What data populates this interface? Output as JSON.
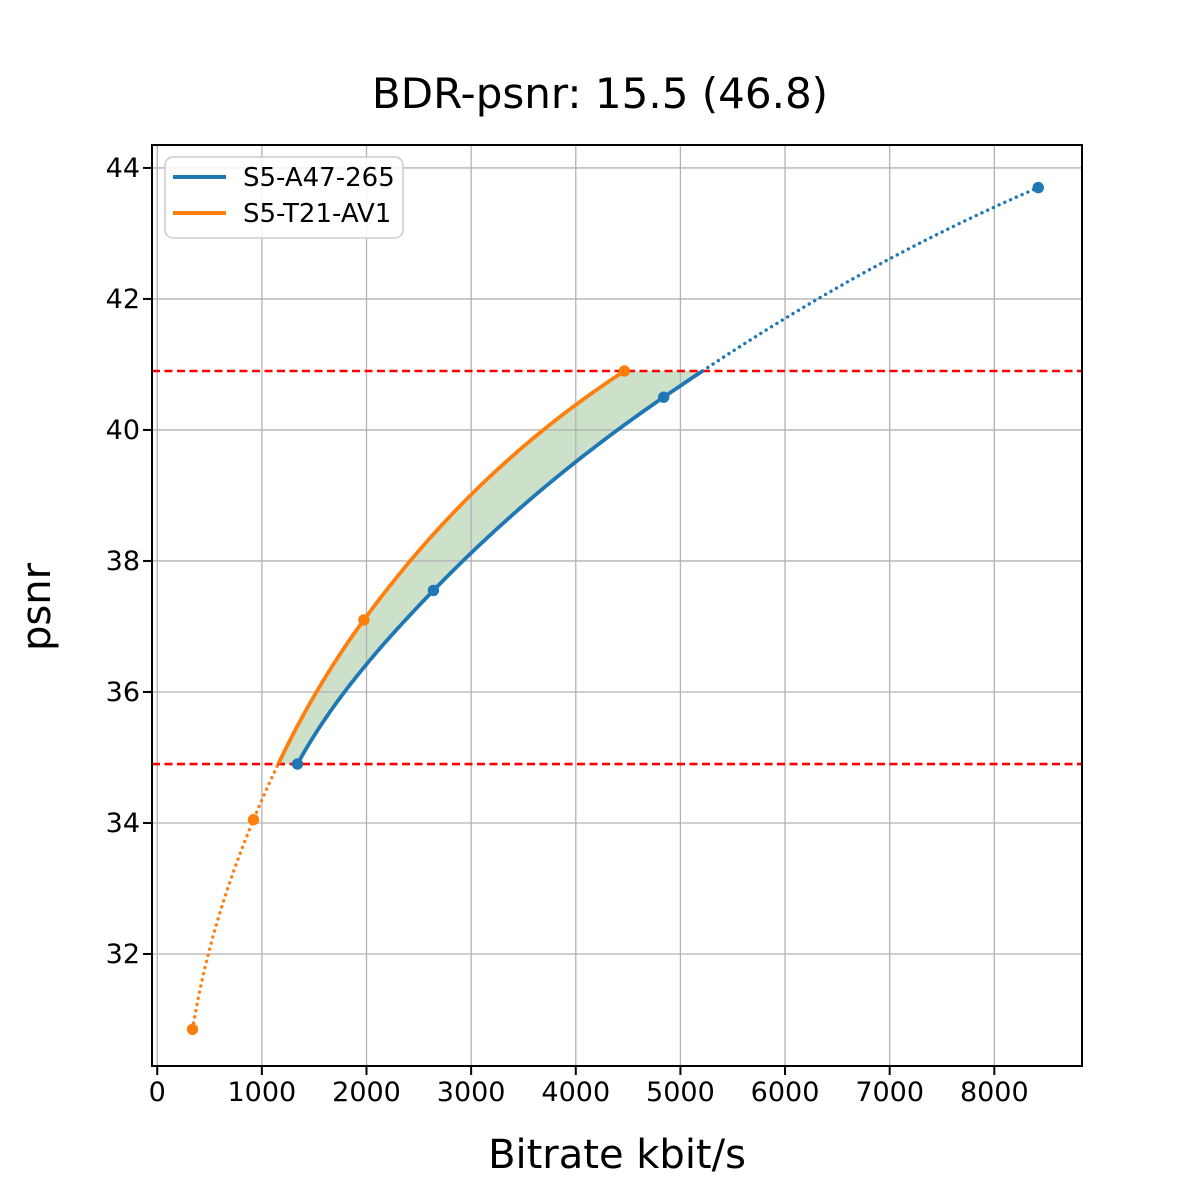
{
  "chart_data": {
    "type": "line",
    "title": "BDR-psnr: 15.5 (46.8)",
    "xlabel": "Bitrate kbit/s",
    "ylabel": "psnr",
    "xlim": [
      -50,
      8838
    ],
    "ylim": [
      30.29,
      44.35
    ],
    "x_ticks": [
      0,
      1000,
      2000,
      3000,
      4000,
      5000,
      6000,
      7000,
      8000
    ],
    "y_ticks": [
      32,
      34,
      36,
      38,
      40,
      42,
      44
    ],
    "grid": true,
    "grid_color": "#b2b2b2",
    "legend_position": "upper left",
    "interpolation": "monotone-cubic-in-log-x",
    "series": [
      {
        "name": "S5-A47-265",
        "color": "#1f77b4",
        "points": [
          [
            1340,
            34.9
          ],
          [
            2640,
            37.55
          ],
          [
            4840,
            40.5
          ],
          [
            8420,
            43.7
          ]
        ]
      },
      {
        "name": "S5-T21-AV1",
        "color": "#ff7f0e",
        "points": [
          [
            337,
            30.85
          ],
          [
            920,
            34.05
          ],
          [
            1975,
            37.1
          ],
          [
            4465,
            40.9
          ]
        ]
      }
    ],
    "overlap_band": {
      "lower": 34.9,
      "upper": 40.9,
      "boundary_color": "#ff0000",
      "boundary_style": "dashed",
      "fill_color": "rgba(70, 140, 60, 0.27)"
    }
  }
}
